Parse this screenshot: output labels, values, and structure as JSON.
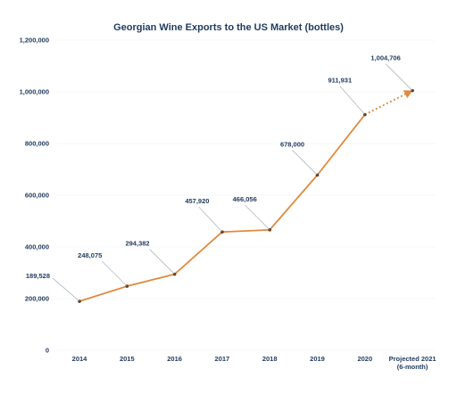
{
  "chart_data": {
    "type": "line",
    "title": "Georgian Wine Exports to the US Market (bottles)",
    "xlabel": "",
    "ylabel": "",
    "ylim": [
      0,
      1200000
    ],
    "yticks": [
      "0",
      "200,000",
      "400,000",
      "600,000",
      "800,000",
      "1,000,000",
      "1,200,000"
    ],
    "grid": true,
    "legend": "none",
    "categories": [
      "2014",
      "2015",
      "2016",
      "2017",
      "2018",
      "2019",
      "2020",
      "Projected 2021\n(6-month)"
    ],
    "series": [
      {
        "values": [
          189528,
          248075,
          294382,
          457920,
          466056,
          678000,
          911931,
          1004706
        ],
        "labels": [
          "189,528",
          "248,075",
          "294,382",
          "457,920",
          "466,056",
          "678,000",
          "911,931",
          "1,004,706"
        ],
        "projected_from_index": 6
      }
    ],
    "colors": {
      "line": "#e08a3c",
      "marker": "#5a3a25",
      "text": "#1f3a5f"
    }
  }
}
